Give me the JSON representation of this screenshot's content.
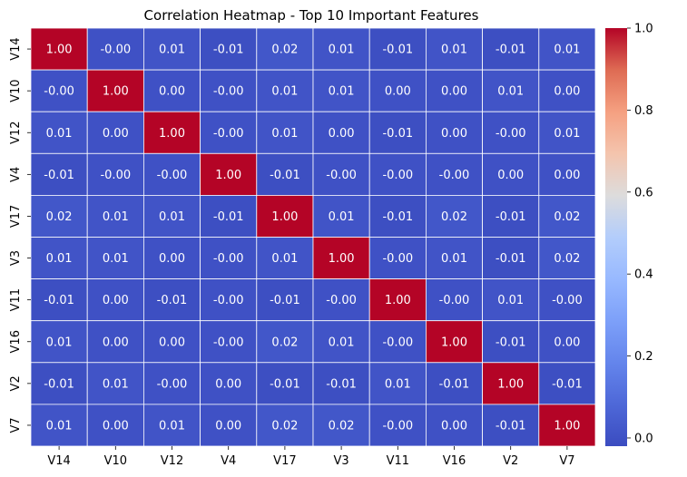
{
  "chart_data": {
    "type": "heatmap",
    "title": "Correlation Heatmap - Top 10 Important Features",
    "x_categories": [
      "V14",
      "V10",
      "V12",
      "V4",
      "V17",
      "V3",
      "V11",
      "V16",
      "V2",
      "V7"
    ],
    "y_categories": [
      "V14",
      "V10",
      "V12",
      "V4",
      "V17",
      "V3",
      "V11",
      "V16",
      "V2",
      "V7"
    ],
    "cell_labels": [
      [
        "1.00",
        "-0.00",
        "0.01",
        "-0.01",
        "0.02",
        "0.01",
        "-0.01",
        "0.01",
        "-0.01",
        "0.01"
      ],
      [
        "-0.00",
        "1.00",
        "0.00",
        "-0.00",
        "0.01",
        "0.01",
        "0.00",
        "0.00",
        "0.01",
        "0.00"
      ],
      [
        "0.01",
        "0.00",
        "1.00",
        "-0.00",
        "0.01",
        "0.00",
        "-0.01",
        "0.00",
        "-0.00",
        "0.01"
      ],
      [
        "-0.01",
        "-0.00",
        "-0.00",
        "1.00",
        "-0.01",
        "-0.00",
        "-0.00",
        "-0.00",
        "0.00",
        "0.00"
      ],
      [
        "0.02",
        "0.01",
        "0.01",
        "-0.01",
        "1.00",
        "0.01",
        "-0.01",
        "0.02",
        "-0.01",
        "0.02"
      ],
      [
        "0.01",
        "0.01",
        "0.00",
        "-0.00",
        "0.01",
        "1.00",
        "-0.00",
        "0.01",
        "-0.01",
        "0.02"
      ],
      [
        "-0.01",
        "0.00",
        "-0.01",
        "-0.00",
        "-0.01",
        "-0.00",
        "1.00",
        "-0.00",
        "0.01",
        "-0.00"
      ],
      [
        "0.01",
        "0.00",
        "0.00",
        "-0.00",
        "0.02",
        "0.01",
        "-0.00",
        "1.00",
        "-0.01",
        "0.00"
      ],
      [
        "-0.01",
        "0.01",
        "-0.00",
        "0.00",
        "-0.01",
        "-0.01",
        "0.01",
        "-0.01",
        "1.00",
        "-0.01"
      ],
      [
        "0.01",
        "0.00",
        "0.01",
        "0.00",
        "0.02",
        "0.02",
        "-0.00",
        "0.00",
        "-0.01",
        "1.00"
      ]
    ],
    "colorbar": {
      "ticks": [
        "0.0",
        "0.2",
        "0.4",
        "0.6",
        "0.8",
        "1.0"
      ],
      "range": [
        -0.02,
        1.0
      ],
      "colormap": "coolwarm",
      "low_color": "#3b4cc0",
      "high_color": "#b40426"
    },
    "grid": true,
    "cell_line_color": "#ffffff"
  }
}
